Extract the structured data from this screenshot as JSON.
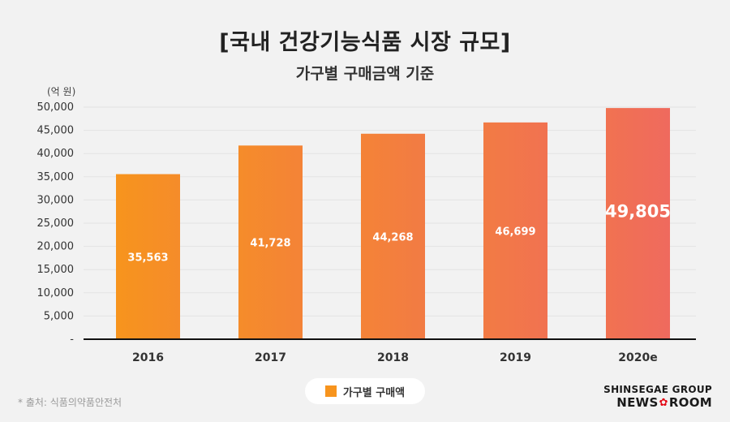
{
  "title": "[국내 건강기능식품 시장 규모]",
  "subtitle": "가구별 구매금액 기준",
  "unit_label": "(억 원)",
  "legend_label": "가구별 구매액",
  "source_note": "* 출처: 식품의약품안전처",
  "brand": {
    "top": "SHINSEGAE GROUP",
    "bottom_left": "NEWS",
    "flower": "✿",
    "bottom_right": "ROOM"
  },
  "colors": {
    "bar_start": "#f7941d",
    "bar_end": "#ef6a5e",
    "axis": "#111111",
    "grid": "#e3e3e3",
    "label_text": "#ffffff"
  },
  "chart_data": {
    "type": "bar",
    "categories": [
      "2016",
      "2017",
      "2018",
      "2019",
      "2020e"
    ],
    "values": [
      35563,
      41728,
      44268,
      46699,
      49805
    ],
    "value_labels": [
      "35,563",
      "41,728",
      "44,268",
      "46,699",
      "49,805"
    ],
    "yticks": [
      0,
      5000,
      10000,
      15000,
      20000,
      25000,
      30000,
      35000,
      40000,
      45000,
      50000
    ],
    "ytick_labels": [
      "-",
      "5,000",
      "10,000",
      "15,000",
      "20,000",
      "25,000",
      "30,000",
      "35,000",
      "40,000",
      "45,000",
      "50,000"
    ],
    "ylim": [
      0,
      50000
    ],
    "highlight_index": 4,
    "title": "[국내 건강기능식품 시장 규모]",
    "ylabel": "(억 원)",
    "xlabel": ""
  }
}
